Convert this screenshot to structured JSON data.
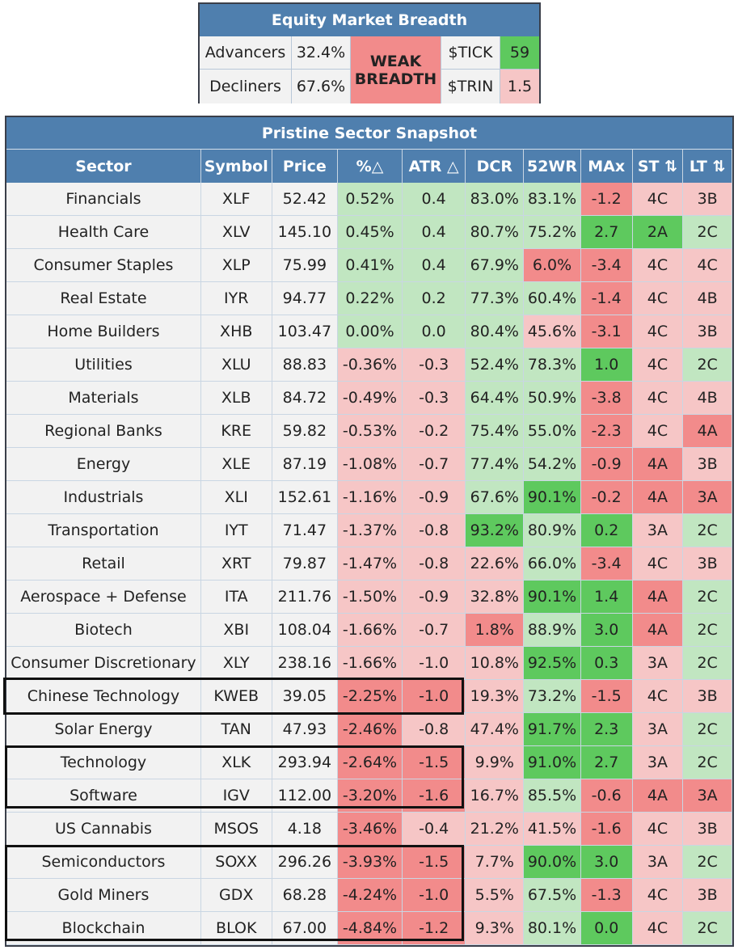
{
  "breadth": {
    "title": "Equity Market Breadth",
    "advancers_label": "Advancers",
    "advancers_value": "32.4%",
    "decliners_label": "Decliners",
    "decliners_value": "67.6%",
    "status": "WEAK BREADTH",
    "tick_label": "$TICK",
    "tick_value": "59",
    "trin_label": "$TRIN",
    "trin_value": "1.5"
  },
  "snapshot": {
    "title": "Pristine Sector Snapshot",
    "columns": [
      "Sector",
      "Symbol",
      "Price",
      "%△",
      "ATR △",
      "DCR",
      "52WR",
      "MAx",
      "ST ⇅",
      "LT ⇅"
    ],
    "rows": [
      {
        "sector": "Financials",
        "symbol": "XLF",
        "price": "52.42",
        "pct": "0.52%",
        "atr": "0.4",
        "dcr": "83.0%",
        "wr52": "83.1%",
        "max": "-1.2",
        "st": "4C",
        "lt": "3B"
      },
      {
        "sector": "Health Care",
        "symbol": "XLV",
        "price": "145.10",
        "pct": "0.45%",
        "atr": "0.4",
        "dcr": "80.7%",
        "wr52": "75.2%",
        "max": "2.7",
        "st": "2A",
        "lt": "2C"
      },
      {
        "sector": "Consumer Staples",
        "symbol": "XLP",
        "price": "75.99",
        "pct": "0.41%",
        "atr": "0.4",
        "dcr": "67.9%",
        "wr52": "6.0%",
        "max": "-3.4",
        "st": "4C",
        "lt": "4C"
      },
      {
        "sector": "Real Estate",
        "symbol": "IYR",
        "price": "94.77",
        "pct": "0.22%",
        "atr": "0.2",
        "dcr": "77.3%",
        "wr52": "60.4%",
        "max": "-1.4",
        "st": "4C",
        "lt": "4B"
      },
      {
        "sector": "Home Builders",
        "symbol": "XHB",
        "price": "103.47",
        "pct": "0.00%",
        "atr": "0.0",
        "dcr": "80.4%",
        "wr52": "45.6%",
        "max": "-3.1",
        "st": "4C",
        "lt": "3B"
      },
      {
        "sector": "Utilities",
        "symbol": "XLU",
        "price": "88.83",
        "pct": "-0.36%",
        "atr": "-0.3",
        "dcr": "52.4%",
        "wr52": "78.3%",
        "max": "1.0",
        "st": "4C",
        "lt": "2C"
      },
      {
        "sector": "Materials",
        "symbol": "XLB",
        "price": "84.72",
        "pct": "-0.49%",
        "atr": "-0.3",
        "dcr": "64.4%",
        "wr52": "50.9%",
        "max": "-3.8",
        "st": "4C",
        "lt": "4B"
      },
      {
        "sector": "Regional Banks",
        "symbol": "KRE",
        "price": "59.82",
        "pct": "-0.53%",
        "atr": "-0.2",
        "dcr": "75.4%",
        "wr52": "55.0%",
        "max": "-2.3",
        "st": "4C",
        "lt": "4A"
      },
      {
        "sector": "Energy",
        "symbol": "XLE",
        "price": "87.19",
        "pct": "-1.08%",
        "atr": "-0.7",
        "dcr": "77.4%",
        "wr52": "54.2%",
        "max": "-0.9",
        "st": "4A",
        "lt": "3B"
      },
      {
        "sector": "Industrials",
        "symbol": "XLI",
        "price": "152.61",
        "pct": "-1.16%",
        "atr": "-0.9",
        "dcr": "67.6%",
        "wr52": "90.1%",
        "max": "-0.2",
        "st": "4A",
        "lt": "3A"
      },
      {
        "sector": "Transportation",
        "symbol": "IYT",
        "price": "71.47",
        "pct": "-1.37%",
        "atr": "-0.8",
        "dcr": "93.2%",
        "wr52": "80.9%",
        "max": "0.2",
        "st": "3A",
        "lt": "2C"
      },
      {
        "sector": "Retail",
        "symbol": "XRT",
        "price": "79.87",
        "pct": "-1.47%",
        "atr": "-0.8",
        "dcr": "22.6%",
        "wr52": "66.0%",
        "max": "-3.4",
        "st": "4C",
        "lt": "3B"
      },
      {
        "sector": "Aerospace + Defense",
        "symbol": "ITA",
        "price": "211.76",
        "pct": "-1.50%",
        "atr": "-0.9",
        "dcr": "32.8%",
        "wr52": "90.1%",
        "max": "1.4",
        "st": "4A",
        "lt": "2C"
      },
      {
        "sector": "Biotech",
        "symbol": "XBI",
        "price": "108.04",
        "pct": "-1.66%",
        "atr": "-0.7",
        "dcr": "1.8%",
        "wr52": "88.9%",
        "max": "3.0",
        "st": "4A",
        "lt": "2C"
      },
      {
        "sector": "Consumer Discretionary",
        "symbol": "XLY",
        "price": "238.16",
        "pct": "-1.66%",
        "atr": "-1.0",
        "dcr": "10.8%",
        "wr52": "92.5%",
        "max": "0.3",
        "st": "3A",
        "lt": "2C"
      },
      {
        "sector": "Chinese Technology",
        "symbol": "KWEB",
        "price": "39.05",
        "pct": "-2.25%",
        "atr": "-1.0",
        "dcr": "19.3%",
        "wr52": "73.2%",
        "max": "-1.5",
        "st": "4C",
        "lt": "3B"
      },
      {
        "sector": "Solar Energy",
        "symbol": "TAN",
        "price": "47.93",
        "pct": "-2.46%",
        "atr": "-0.8",
        "dcr": "47.4%",
        "wr52": "91.7%",
        "max": "2.3",
        "st": "3A",
        "lt": "2C"
      },
      {
        "sector": "Technology",
        "symbol": "XLK",
        "price": "293.94",
        "pct": "-2.64%",
        "atr": "-1.5",
        "dcr": "9.9%",
        "wr52": "91.0%",
        "max": "2.7",
        "st": "3A",
        "lt": "2C"
      },
      {
        "sector": "Software",
        "symbol": "IGV",
        "price": "112.00",
        "pct": "-3.20%",
        "atr": "-1.6",
        "dcr": "16.7%",
        "wr52": "85.5%",
        "max": "-0.6",
        "st": "4A",
        "lt": "3A"
      },
      {
        "sector": "US Cannabis",
        "symbol": "MSOS",
        "price": "4.18",
        "pct": "-3.46%",
        "atr": "-0.4",
        "dcr": "21.2%",
        "wr52": "41.5%",
        "max": "-1.6",
        "st": "4C",
        "lt": "3B"
      },
      {
        "sector": "Semiconductors",
        "symbol": "SOXX",
        "price": "296.26",
        "pct": "-3.93%",
        "atr": "-1.5",
        "dcr": "7.7%",
        "wr52": "90.0%",
        "max": "3.0",
        "st": "3A",
        "lt": "2C"
      },
      {
        "sector": "Gold Miners",
        "symbol": "GDX",
        "price": "68.28",
        "pct": "-4.24%",
        "atr": "-1.0",
        "dcr": "5.5%",
        "wr52": "67.5%",
        "max": "-1.3",
        "st": "4C",
        "lt": "3B"
      },
      {
        "sector": "Blockchain",
        "symbol": "BLOK",
        "price": "67.00",
        "pct": "-4.84%",
        "atr": "-1.2",
        "dcr": "9.3%",
        "wr52": "80.1%",
        "max": "0.0",
        "st": "4C",
        "lt": "2C"
      }
    ]
  },
  "colors": {
    "header_blue": "#4f7fae",
    "light_green": "#c1e6c1",
    "strong_green": "#5ec95e",
    "light_red": "#f6c6c6",
    "strong_red": "#f28b8b",
    "neutral": "#f2f2f2"
  }
}
